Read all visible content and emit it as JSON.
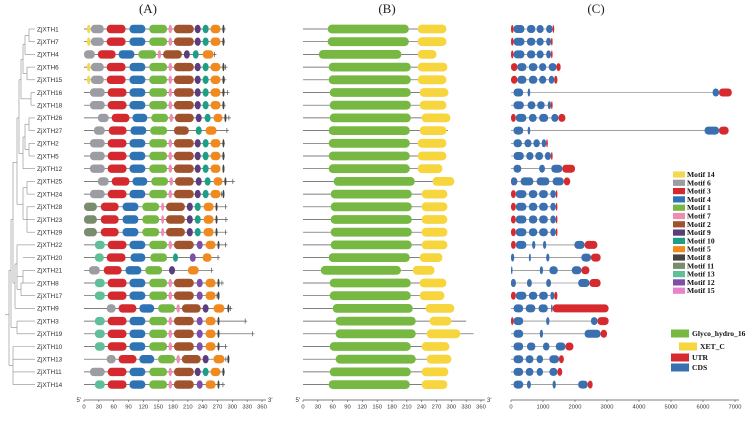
{
  "panels": {
    "a": "(A)",
    "b": "(B)",
    "c": "(C)"
  },
  "genes": [
    "ZjXTH1",
    "ZjXTH7",
    "ZjXTH4",
    "ZjXTH6",
    "ZjXTH15",
    "ZjXTH16",
    "ZjXTH18",
    "ZjXTH26",
    "ZjXTH27",
    "ZjXTH2",
    "ZjXTH5",
    "ZjXTH12",
    "ZjXTH25",
    "ZjXTH24",
    "ZjXTH28",
    "ZjXTH23",
    "ZjXTH29",
    "ZjXTH22",
    "ZjXTH20",
    "ZjXTH21",
    "ZjXTH8",
    "ZjXTH17",
    "ZjXTH9",
    "ZjXTH3",
    "ZjXTH19",
    "ZjXTH10",
    "ZjXTH13",
    "ZjXTH11",
    "ZjXTH14"
  ],
  "axis_a": {
    "ticks": [
      0,
      30,
      60,
      90,
      120,
      150,
      180,
      210,
      240,
      270,
      300,
      330,
      360
    ],
    "min": 0,
    "max": 360,
    "start": "5'",
    "end": "3'"
  },
  "axis_b": {
    "ticks": [
      0,
      30,
      60,
      90,
      120,
      150,
      180,
      210,
      240,
      270,
      300,
      330,
      360
    ],
    "min": 0,
    "max": 360,
    "start": "5'",
    "end": "3'"
  },
  "axis_c": {
    "ticks": [
      0,
      1000,
      2000,
      3000,
      4000,
      5000,
      6000,
      7000
    ],
    "min": 0,
    "max": 7000
  },
  "motifs": [
    {
      "name": "Motif 14",
      "color": "#F2D94E"
    },
    {
      "name": "Motif 6",
      "color": "#9C9CA3"
    },
    {
      "name": "Motif 3",
      "color": "#D42A2F"
    },
    {
      "name": "Motif 4",
      "color": "#2E74B5"
    },
    {
      "name": "Motif 1",
      "color": "#74B843"
    },
    {
      "name": "Motif 7",
      "color": "#F08BB3"
    },
    {
      "name": "Motif 2",
      "color": "#A0522D"
    },
    {
      "name": "Motif 9",
      "color": "#5A3D7A"
    },
    {
      "name": "Motif 10",
      "color": "#1E9E86"
    },
    {
      "name": "Motif 5",
      "color": "#F08A1F"
    },
    {
      "name": "Motif 8",
      "color": "#444444"
    },
    {
      "name": "Motif 11",
      "color": "#7A8C6E"
    },
    {
      "name": "Motif 13",
      "color": "#5FBF98"
    },
    {
      "name": "Motif 12",
      "color": "#7E4FA6"
    },
    {
      "name": "Motif 15",
      "color": "#E783C8"
    }
  ],
  "domains": [
    {
      "name": "Glyco_hydro_16",
      "color": "#77B843"
    },
    {
      "name": "XET_C",
      "color": "#F7D53C"
    }
  ],
  "structure": [
    {
      "name": "UTR",
      "color": "#D62A2E"
    },
    {
      "name": "CDS",
      "color": "#3A6FB0"
    }
  ],
  "gene_lengths": [
    287,
    285,
    268,
    290,
    288,
    294,
    287,
    297,
    293,
    285,
    285,
    270,
    305,
    282,
    290,
    291,
    290,
    290,
    275,
    262,
    283,
    273,
    300,
    330,
    345,
    290,
    291,
    285,
    285
  ]
}
